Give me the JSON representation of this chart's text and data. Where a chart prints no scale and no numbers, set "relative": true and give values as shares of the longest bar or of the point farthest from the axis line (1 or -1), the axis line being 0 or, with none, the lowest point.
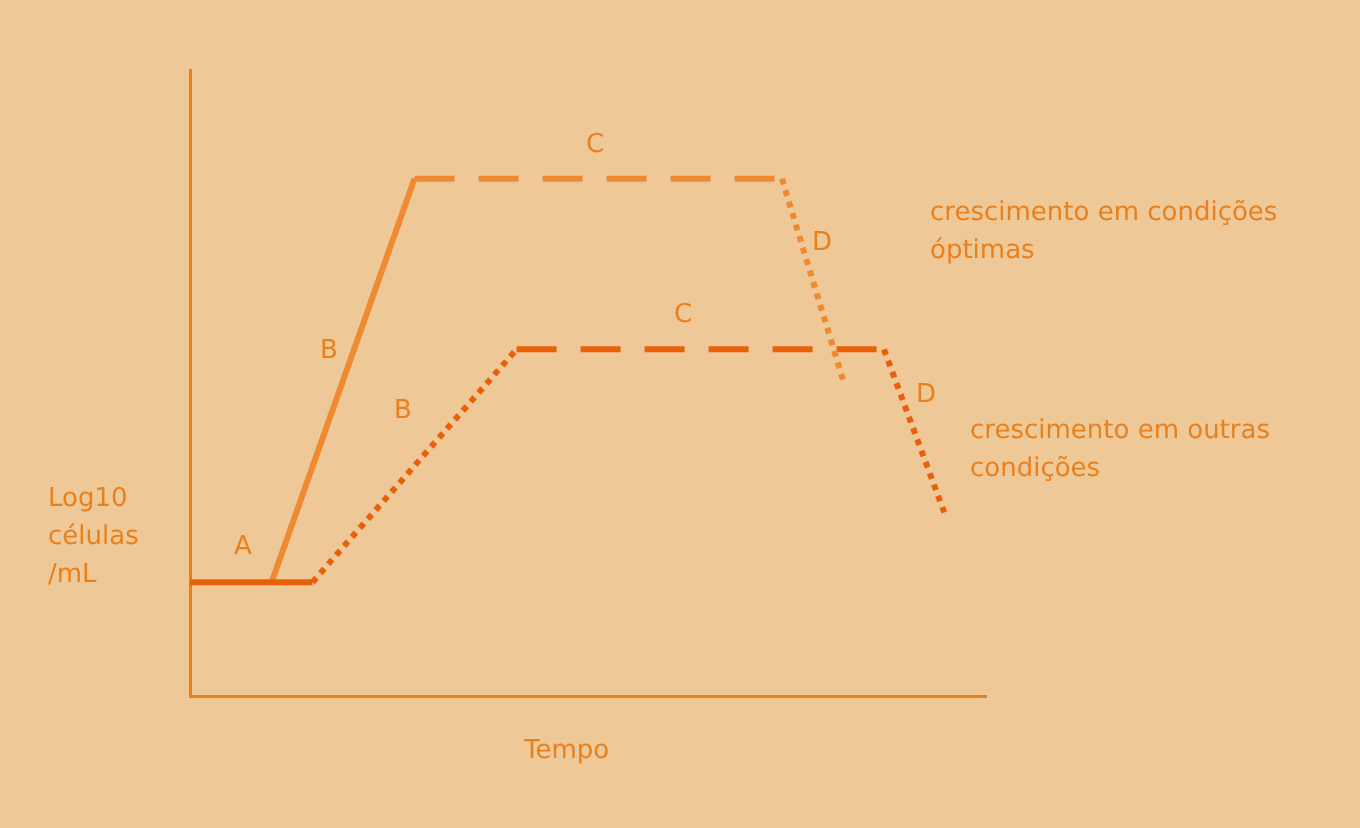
{
  "chart_data": {
    "type": "line",
    "relative": true,
    "xlabel": "Tempo",
    "ylabel": "Log10 células /mL",
    "legend": false,
    "grid": false,
    "marker": "none",
    "categories": [
      null,
      null,
      null,
      null,
      null,
      null,
      null,
      null,
      null,
      null,
      null,
      null,
      null,
      null,
      null,
      null,
      null,
      null,
      null,
      null,
      null,
      null,
      null,
      null,
      null,
      null,
      null,
      null,
      null,
      null,
      null,
      null,
      null,
      null,
      null,
      null,
      null,
      null,
      null,
      null
    ],
    "series": [
      {
        "color": "#e8600a",
        "line_style": "solid",
        "values": [
          0.22,
          null,
          null,
          null,
          null,
          null,
          0.22,
          null,
          null,
          null,
          null,
          null,
          null,
          null,
          null,
          null,
          null,
          null,
          null,
          null,
          null,
          null,
          null,
          null,
          null,
          null,
          null,
          null,
          null,
          null,
          null,
          null,
          null,
          null,
          null,
          null,
          null,
          null,
          null,
          null
        ]
      },
      {
        "color": "#f08a30",
        "line_style": "solid",
        "values": [
          null,
          null,
          null,
          null,
          0.22,
          null,
          null,
          null,
          null,
          null,
          null,
          1,
          null,
          null,
          null,
          null,
          null,
          null,
          null,
          null,
          null,
          null,
          null,
          null,
          null,
          null,
          null,
          null,
          null,
          null,
          null,
          null,
          null,
          null,
          null,
          null,
          null,
          null,
          null,
          null
        ]
      },
      {
        "color": "#f08a30",
        "line_style": "dashed",
        "values": [
          null,
          null,
          null,
          null,
          null,
          null,
          null,
          null,
          null,
          null,
          null,
          1,
          null,
          null,
          null,
          null,
          null,
          null,
          null,
          null,
          null,
          null,
          null,
          null,
          null,
          null,
          null,
          null,
          null,
          1,
          null,
          null,
          null,
          null,
          null,
          null,
          null,
          null,
          null,
          null
        ]
      },
      {
        "color": "#f08a30",
        "line_style": "dotted",
        "values": [
          null,
          null,
          null,
          null,
          null,
          null,
          null,
          null,
          null,
          null,
          null,
          null,
          null,
          null,
          null,
          null,
          null,
          null,
          null,
          null,
          null,
          null,
          null,
          null,
          null,
          null,
          null,
          null,
          null,
          1,
          null,
          null,
          0.61,
          null,
          null,
          null,
          null,
          null,
          null,
          null
        ]
      },
      {
        "color": "#e8600a",
        "line_style": "dotted",
        "values": [
          null,
          null,
          null,
          null,
          null,
          null,
          0.22,
          null,
          null,
          null,
          null,
          null,
          null,
          null,
          null,
          null,
          0.67,
          null,
          null,
          null,
          null,
          null,
          null,
          null,
          null,
          null,
          null,
          null,
          null,
          null,
          null,
          null,
          null,
          null,
          null,
          null,
          null,
          null,
          null,
          null
        ]
      },
      {
        "color": "#e8600a",
        "line_style": "dashed",
        "values": [
          null,
          null,
          null,
          null,
          null,
          null,
          null,
          null,
          null,
          null,
          null,
          null,
          null,
          null,
          null,
          null,
          0.67,
          null,
          null,
          null,
          null,
          null,
          null,
          null,
          null,
          null,
          null,
          null,
          null,
          null,
          null,
          null,
          null,
          null,
          0.67,
          null,
          null,
          null,
          null,
          null
        ]
      },
      {
        "color": "#e8600a",
        "line_style": "dotted",
        "values": [
          null,
          null,
          null,
          null,
          null,
          null,
          null,
          null,
          null,
          null,
          null,
          null,
          null,
          null,
          null,
          null,
          null,
          null,
          null,
          null,
          null,
          null,
          null,
          null,
          null,
          null,
          null,
          null,
          null,
          null,
          null,
          null,
          null,
          null,
          0.67,
          null,
          null,
          0.35,
          null,
          null
        ]
      }
    ],
    "annotations": [
      "A",
      "B",
      "B",
      "C",
      "C",
      "D",
      "D",
      "crescimento em condições óptimas",
      "crescimento em outras condições"
    ]
  }
}
